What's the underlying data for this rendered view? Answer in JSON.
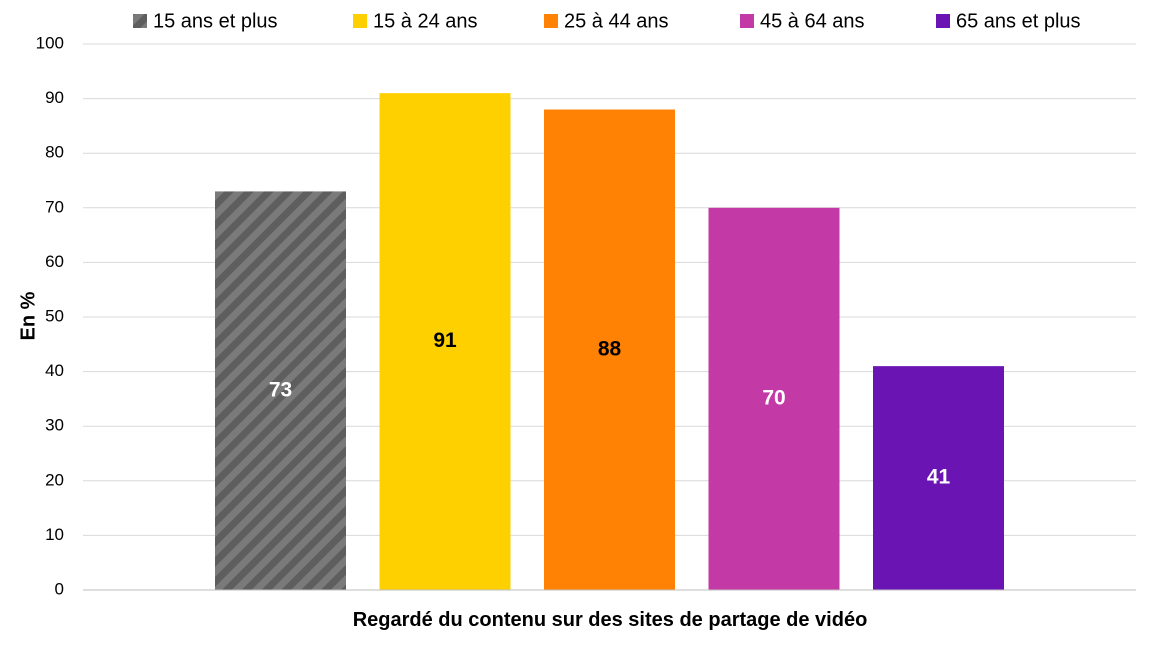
{
  "chart_data": {
    "type": "bar",
    "categories": [
      "Regardé du contenu sur des sites de partage de vidéo"
    ],
    "series": [
      {
        "name": "15 ans et plus",
        "values": [
          73
        ],
        "color": "#7a7a7a",
        "pattern": "diagonal-stripes",
        "label_color": "#ffffff"
      },
      {
        "name": "15 à 24 ans",
        "values": [
          91
        ],
        "color": "#ffd000",
        "label_color": "#000000"
      },
      {
        "name": "25 à 44 ans",
        "values": [
          88
        ],
        "color": "#ff8205",
        "label_color": "#000000"
      },
      {
        "name": "45 à 64 ans",
        "values": [
          70
        ],
        "color": "#c33aa6",
        "label_color": "#ffffff"
      },
      {
        "name": "65 ans et plus",
        "values": [
          41
        ],
        "color": "#6a14b4",
        "label_color": "#ffffff"
      }
    ],
    "title": "",
    "xlabel": "Regardé du contenu sur des sites de partage de vidéo",
    "ylabel": "En %",
    "ylim": [
      0,
      100
    ],
    "yticks": [
      0,
      10,
      20,
      30,
      40,
      50,
      60,
      70,
      80,
      90,
      100
    ],
    "grid": true,
    "legend_position": "top"
  }
}
